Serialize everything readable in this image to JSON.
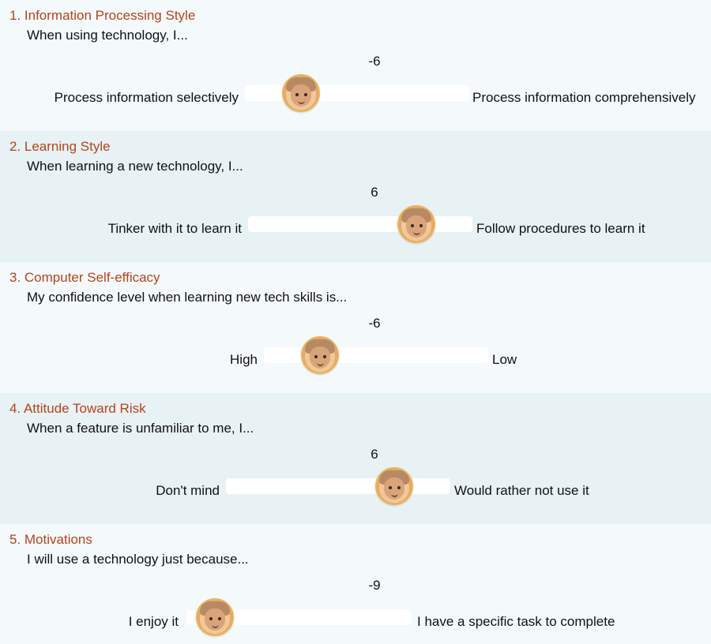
{
  "sections": [
    {
      "title": "1. Information Processing Style",
      "question": "When using technology, I...",
      "value": "-6",
      "left_label": "Process information selectively",
      "right_label": "Process information comprehensively",
      "slider_level": 0.25
    },
    {
      "title": "2. Learning Style",
      "question": "When learning a new technology, I...",
      "value": "6",
      "left_label": "Tinker with it to learn it",
      "right_label": "Follow procedures to learn it",
      "slider_level": 0.75
    },
    {
      "title": "3. Computer Self-efficacy",
      "question": "My confidence level when learning new tech skills is...",
      "value": "-6",
      "left_label": "High",
      "right_label": "Low",
      "slider_level": 0.25
    },
    {
      "title": "4. Attitude Toward Risk",
      "question": "When a feature is unfamiliar to me, I...",
      "value": "6",
      "left_label": "Don't mind",
      "right_label": "Would rather not use it",
      "slider_level": 0.75
    },
    {
      "title": "5. Motivations",
      "question": "I will use a technology just because...",
      "value": "-9",
      "left_label": "I enjoy it",
      "right_label": "I have a specific task to complete",
      "slider_level": 0.125
    }
  ],
  "colors": {
    "title": "#b5441c",
    "background_light": "#f4f9fb",
    "background_dark": "#e8f1f4",
    "track": "#ffffff"
  },
  "icons": {
    "slider_thumb": "person-face-icon"
  }
}
